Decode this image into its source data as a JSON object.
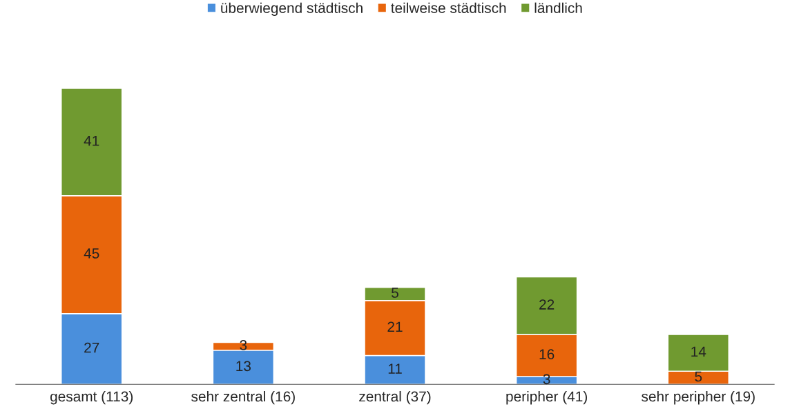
{
  "chart_data": {
    "type": "bar",
    "stacked": true,
    "data_labels": true,
    "legend": "top",
    "grid": false,
    "tick_labels": "x",
    "categories": [
      "gesamt (113)",
      "sehr zentral (16)",
      "zentral (37)",
      "peripher (41)",
      "sehr peripher (19)"
    ],
    "series": [
      {
        "name": "überwiegend städtisch",
        "color": "#4a8fdc",
        "values": [
          27,
          13,
          11,
          3,
          null
        ]
      },
      {
        "name": "teilweise städtisch",
        "color": "#e8650c",
        "values": [
          45,
          3,
          21,
          16,
          5
        ]
      },
      {
        "name": "ländlich",
        "color": "#709a30",
        "values": [
          41,
          null,
          5,
          22,
          14
        ]
      }
    ]
  }
}
